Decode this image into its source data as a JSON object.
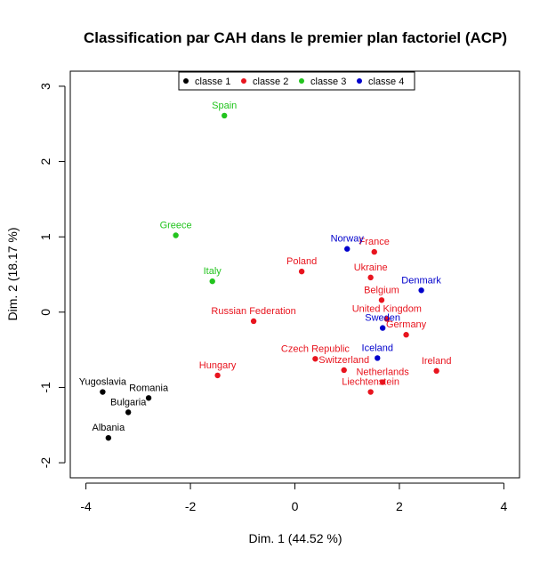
{
  "chart_data": {
    "type": "scatter",
    "title": "Classification par CAH dans le premier plan factoriel (ACP)",
    "xlabel": "Dim. 1 (44.52 %)",
    "ylabel": "Dim. 2 (18.17 %)",
    "xlim": [
      -4.3,
      4.3
    ],
    "ylim": [
      -2.2,
      3.2
    ],
    "xticks": [
      -4,
      -2,
      0,
      2,
      4
    ],
    "yticks": [
      -2,
      -1,
      0,
      1,
      2,
      3
    ],
    "grid": false,
    "legend_position": "top",
    "series": [
      {
        "name": "classe 1",
        "color": "#000000",
        "points": [
          {
            "label": "Yugoslavia",
            "x": -3.68,
            "y": -1.06
          },
          {
            "label": "Romania",
            "x": -2.8,
            "y": -1.14
          },
          {
            "label": "Bulgaria",
            "x": -3.19,
            "y": -1.33
          },
          {
            "label": "Albania",
            "x": -3.57,
            "y": -1.67
          }
        ]
      },
      {
        "name": "classe 2",
        "color": "#e8141e",
        "points": [
          {
            "label": "France",
            "x": 1.52,
            "y": 0.8
          },
          {
            "label": "Poland",
            "x": 0.13,
            "y": 0.54
          },
          {
            "label": "Ukraine",
            "x": 1.45,
            "y": 0.46
          },
          {
            "label": "Belgium",
            "x": 1.66,
            "y": 0.16
          },
          {
            "label": "United Kingdom",
            "x": 1.76,
            "y": -0.09
          },
          {
            "label": "Germany",
            "x": 2.13,
            "y": -0.3
          },
          {
            "label": "Russian Federation",
            "x": -0.79,
            "y": -0.12
          },
          {
            "label": "Czech Republic",
            "x": 0.39,
            "y": -0.62
          },
          {
            "label": "Switzerland",
            "x": 0.94,
            "y": -0.77
          },
          {
            "label": "Netherlands",
            "x": 1.68,
            "y": -0.93
          },
          {
            "label": "Ireland",
            "x": 2.71,
            "y": -0.78
          },
          {
            "label": "Liechtenstein",
            "x": 1.45,
            "y": -1.06
          },
          {
            "label": "Hungary",
            "x": -1.48,
            "y": -0.84
          }
        ]
      },
      {
        "name": "classe 3",
        "color": "#22c41e",
        "points": [
          {
            "label": "Spain",
            "x": -1.35,
            "y": 2.61
          },
          {
            "label": "Greece",
            "x": -2.28,
            "y": 1.02
          },
          {
            "label": "Italy",
            "x": -1.58,
            "y": 0.41
          }
        ]
      },
      {
        "name": "classe 4",
        "color": "#0000cc",
        "points": [
          {
            "label": "Norway",
            "x": 1.0,
            "y": 0.84
          },
          {
            "label": "Denmark",
            "x": 2.42,
            "y": 0.29
          },
          {
            "label": "Sweden",
            "x": 1.68,
            "y": -0.21
          },
          {
            "label": "Iceland",
            "x": 1.58,
            "y": -0.61
          }
        ]
      }
    ]
  }
}
